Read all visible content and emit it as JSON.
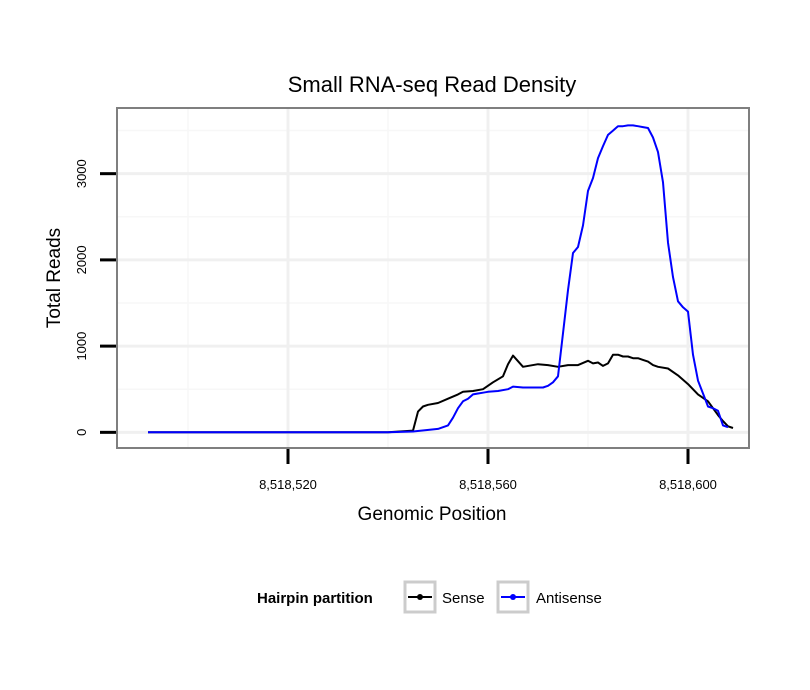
{
  "chart_data": {
    "type": "line",
    "title": "Small RNA-seq Read Density",
    "xlabel": "Genomic Position",
    "ylabel": "Total Reads",
    "xlim": [
      8518486,
      8518612
    ],
    "ylim": [
      -170,
      3750
    ],
    "x_ticks": [
      8518520,
      8518560,
      8518600
    ],
    "x_tick_labels": [
      "8,518,520",
      "8,518,560",
      "8,518,600"
    ],
    "y_ticks": [
      0,
      1000,
      2000,
      3000
    ],
    "y_tick_labels": [
      "0",
      "1000",
      "2000",
      "3000"
    ],
    "x_grid_minor": [
      8518500,
      8518540,
      8518580
    ],
    "y_grid_minor": [
      500,
      1500,
      2500,
      3500
    ],
    "legend": {
      "title": "Hairpin partition",
      "position": "bottom",
      "entries": [
        "Sense",
        "Antisense"
      ]
    },
    "series": [
      {
        "name": "Sense",
        "color": "#000000",
        "x": [
          8518492,
          8518500,
          8518510,
          8518520,
          8518530,
          8518540,
          8518545,
          8518546,
          8518547,
          8518548,
          8518550,
          8518552,
          8518554,
          8518555,
          8518557,
          8518559,
          8518561,
          8518563,
          8518564,
          8518565,
          8518567,
          8518570,
          8518572,
          8518574,
          8518576,
          8518578,
          8518580,
          8518581,
          8518582,
          8518583,
          8518584,
          8518585,
          8518586,
          8518587,
          8518588,
          8518589,
          8518590,
          8518591,
          8518592,
          8518593,
          8518594,
          8518596,
          8518598,
          8518600,
          8518602,
          8518604,
          8518605,
          8518606,
          8518607,
          8518608,
          8518609
        ],
        "values": [
          0,
          0,
          0,
          0,
          0,
          0,
          20,
          240,
          300,
          320,
          340,
          390,
          440,
          470,
          480,
          500,
          580,
          650,
          790,
          890,
          760,
          790,
          780,
          760,
          780,
          780,
          830,
          800,
          810,
          770,
          800,
          900,
          900,
          880,
          880,
          860,
          860,
          840,
          820,
          780,
          760,
          740,
          660,
          560,
          440,
          360,
          280,
          200,
          130,
          70,
          50
        ]
      },
      {
        "name": "Antisense",
        "color": "#0000ff",
        "x": [
          8518492,
          8518500,
          8518510,
          8518520,
          8518530,
          8518540,
          8518545,
          8518550,
          8518552,
          8518553,
          8518554,
          8518555,
          8518556,
          8518557,
          8518558,
          8518559,
          8518560,
          8518562,
          8518564,
          8518565,
          8518567,
          8518569,
          8518571,
          8518572,
          8518573,
          8518574,
          8518575,
          8518576,
          8518577,
          8518578,
          8518579,
          8518580,
          8518581,
          8518582,
          8518583,
          8518584,
          8518585,
          8518586,
          8518587,
          8518588,
          8518589,
          8518590,
          8518591,
          8518592,
          8518593,
          8518594,
          8518595,
          8518596,
          8518597,
          8518598,
          8518599,
          8518600,
          8518601,
          8518602,
          8518603,
          8518604,
          8518605,
          8518606,
          8518607,
          8518608
        ],
        "values": [
          0,
          0,
          0,
          0,
          0,
          0,
          10,
          40,
          80,
          170,
          280,
          360,
          390,
          440,
          450,
          460,
          470,
          480,
          500,
          530,
          520,
          520,
          520,
          540,
          580,
          650,
          1150,
          1650,
          2080,
          2150,
          2400,
          2800,
          2950,
          3180,
          3320,
          3450,
          3500,
          3550,
          3550,
          3560,
          3560,
          3550,
          3540,
          3530,
          3420,
          3250,
          2900,
          2200,
          1800,
          1520,
          1450,
          1400,
          900,
          600,
          450,
          300,
          280,
          250,
          80,
          60
        ]
      }
    ]
  }
}
